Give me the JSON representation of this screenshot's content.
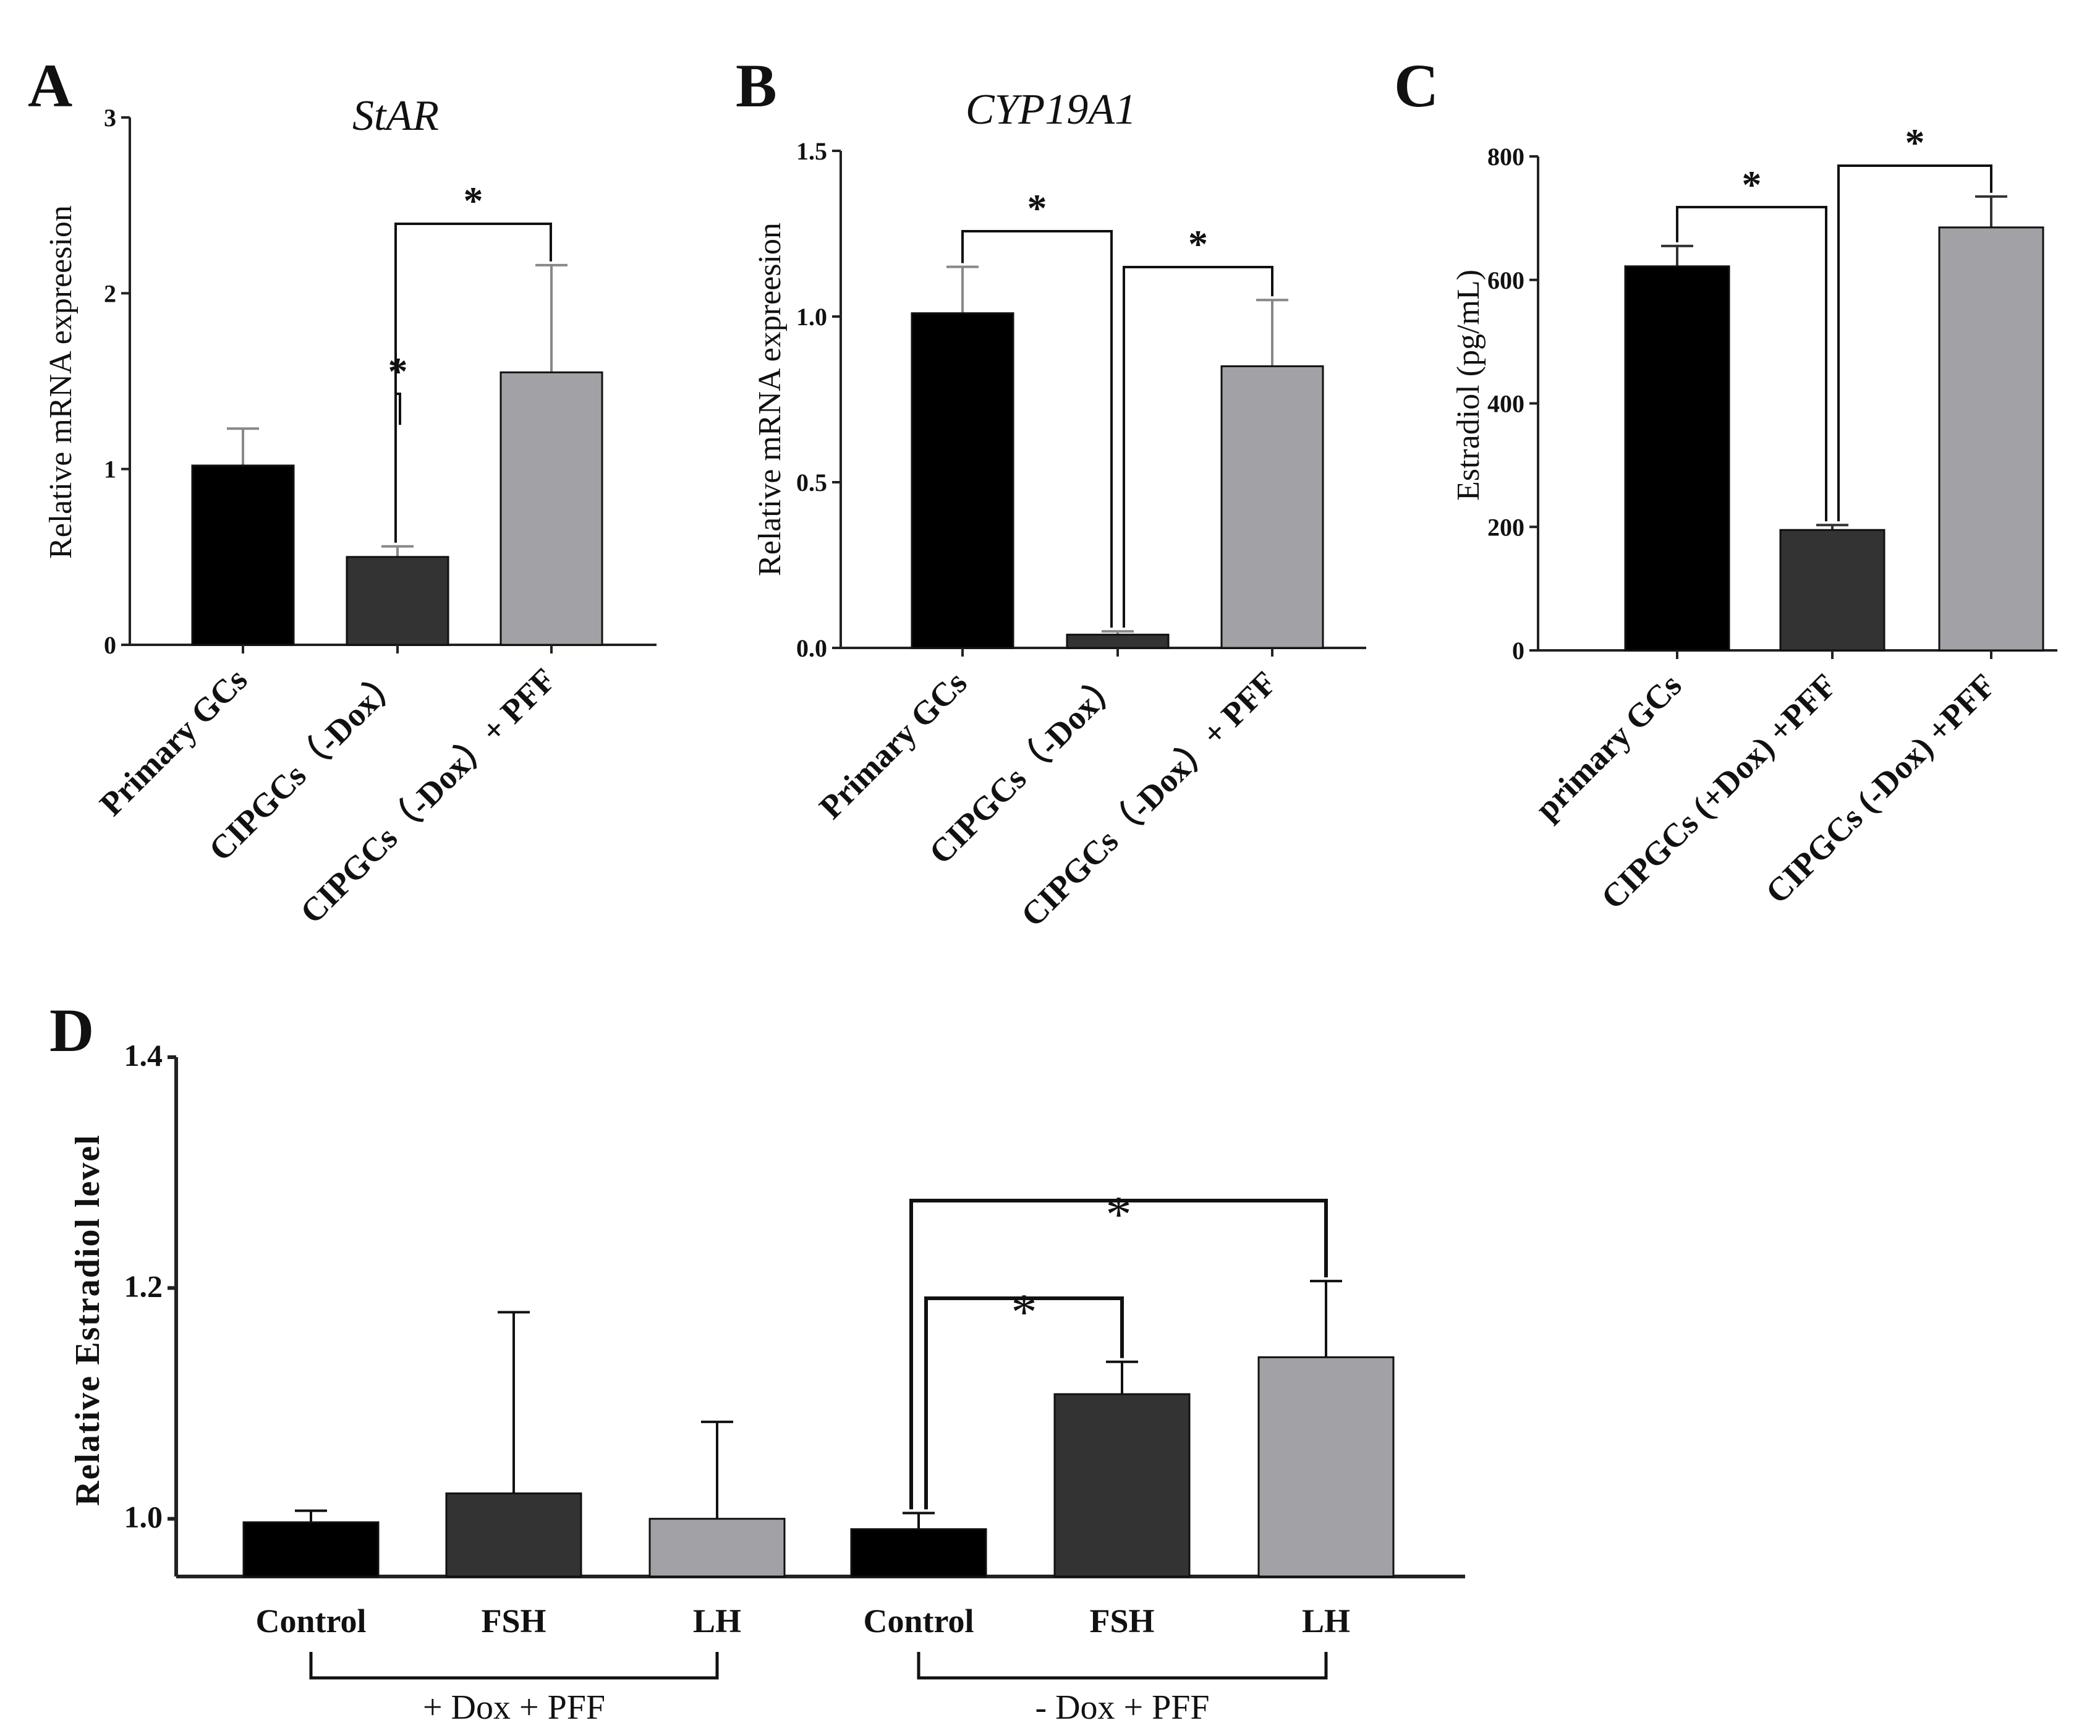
{
  "chart_data": [
    {
      "id": "A",
      "panel": "A",
      "type": "bar",
      "title": "StAR",
      "title_italic": true,
      "ylabel": "Relative mRNA expreesion",
      "xlabel": "",
      "ylim": [
        0,
        3
      ],
      "yticks": [
        0,
        1,
        2,
        3
      ],
      "ytick_labels": [
        "0",
        "1",
        "2",
        "3"
      ],
      "categories": [
        "Primary GCs",
        "CIPGCs（-Dox）",
        "CIPGCs（-Dox）+ PFF"
      ],
      "values": [
        1.02,
        0.5,
        1.55
      ],
      "errors": [
        0.21,
        0.06,
        0.61
      ],
      "colors": [
        "#000000",
        "#333333",
        "#a2a2a6"
      ],
      "error_color": "#888888",
      "significance": [
        {
          "from": 0,
          "to": 1,
          "label": "*"
        },
        {
          "from": 1,
          "to": 2,
          "label": "*"
        }
      ]
    },
    {
      "id": "B",
      "panel": "B",
      "type": "bar",
      "title": "CYP19A1",
      "title_italic": true,
      "ylabel": "Relative mRNA expreesion",
      "xlabel": "",
      "ylim": [
        0,
        1.5
      ],
      "yticks": [
        0,
        0.5,
        1.0,
        1.5
      ],
      "ytick_labels": [
        "0.0",
        "0.5",
        "1.0",
        "1.5"
      ],
      "categories": [
        "Primary GCs",
        "CIPGCs（-Dox）",
        "CIPGCs（-Dox）+ PFF"
      ],
      "values": [
        1.01,
        0.04,
        0.85
      ],
      "errors": [
        0.14,
        0.01,
        0.2
      ],
      "colors": [
        "#000000",
        "#333333",
        "#a2a2a6"
      ],
      "error_color": "#888888",
      "significance": [
        {
          "from": 0,
          "to": 1,
          "label": "*"
        },
        {
          "from": 1,
          "to": 2,
          "label": "*"
        }
      ]
    },
    {
      "id": "C",
      "panel": "C",
      "type": "bar",
      "title": "",
      "ylabel": "Estradiol (pg/mL)",
      "xlabel": "",
      "ylim": [
        0,
        800
      ],
      "yticks": [
        0,
        200,
        400,
        600,
        800
      ],
      "ytick_labels": [
        "0",
        "200",
        "400",
        "600",
        "800"
      ],
      "categories": [
        "primary GCs",
        "CIPGCs (+Dox) +PFF",
        "CIPGCs (-Dox) +PFF"
      ],
      "values": [
        622,
        195,
        685
      ],
      "errors": [
        33,
        8,
        50
      ],
      "colors": [
        "#000000",
        "#333333",
        "#a2a2a6"
      ],
      "error_color": "#333333",
      "significance": [
        {
          "from": 0,
          "to": 1,
          "label": "*"
        },
        {
          "from": 1,
          "to": 2,
          "label": "*"
        }
      ]
    },
    {
      "id": "D",
      "panel": "D",
      "type": "bar",
      "title": "",
      "ylabel": "Relative Estradiol level",
      "xlabel": "",
      "ylim": [
        0.95,
        1.4
      ],
      "yticks": [
        1.0,
        1.2,
        1.4
      ],
      "ytick_labels": [
        "1.0",
        "1.2",
        "1.4"
      ],
      "categories": [
        "Control",
        "FSH",
        "LH",
        "Control",
        "FSH",
        "LH"
      ],
      "groups": [
        {
          "label": "+ Dox + PFF",
          "from": 0,
          "to": 2
        },
        {
          "label": "- Dox + PFF",
          "from": 3,
          "to": 5
        }
      ],
      "values": [
        0.997,
        1.022,
        1.0,
        0.991,
        1.108,
        1.14
      ],
      "errors": [
        0.01,
        0.157,
        0.084,
        0.014,
        0.028,
        0.066
      ],
      "colors": [
        "#000000",
        "#333333",
        "#a2a2a6",
        "#000000",
        "#333333",
        "#a2a2a6"
      ],
      "error_color": "#111111",
      "significance": [
        {
          "from": 3,
          "to": 4,
          "label": "*"
        },
        {
          "from": 3,
          "to": 5,
          "label": "*"
        }
      ]
    }
  ]
}
